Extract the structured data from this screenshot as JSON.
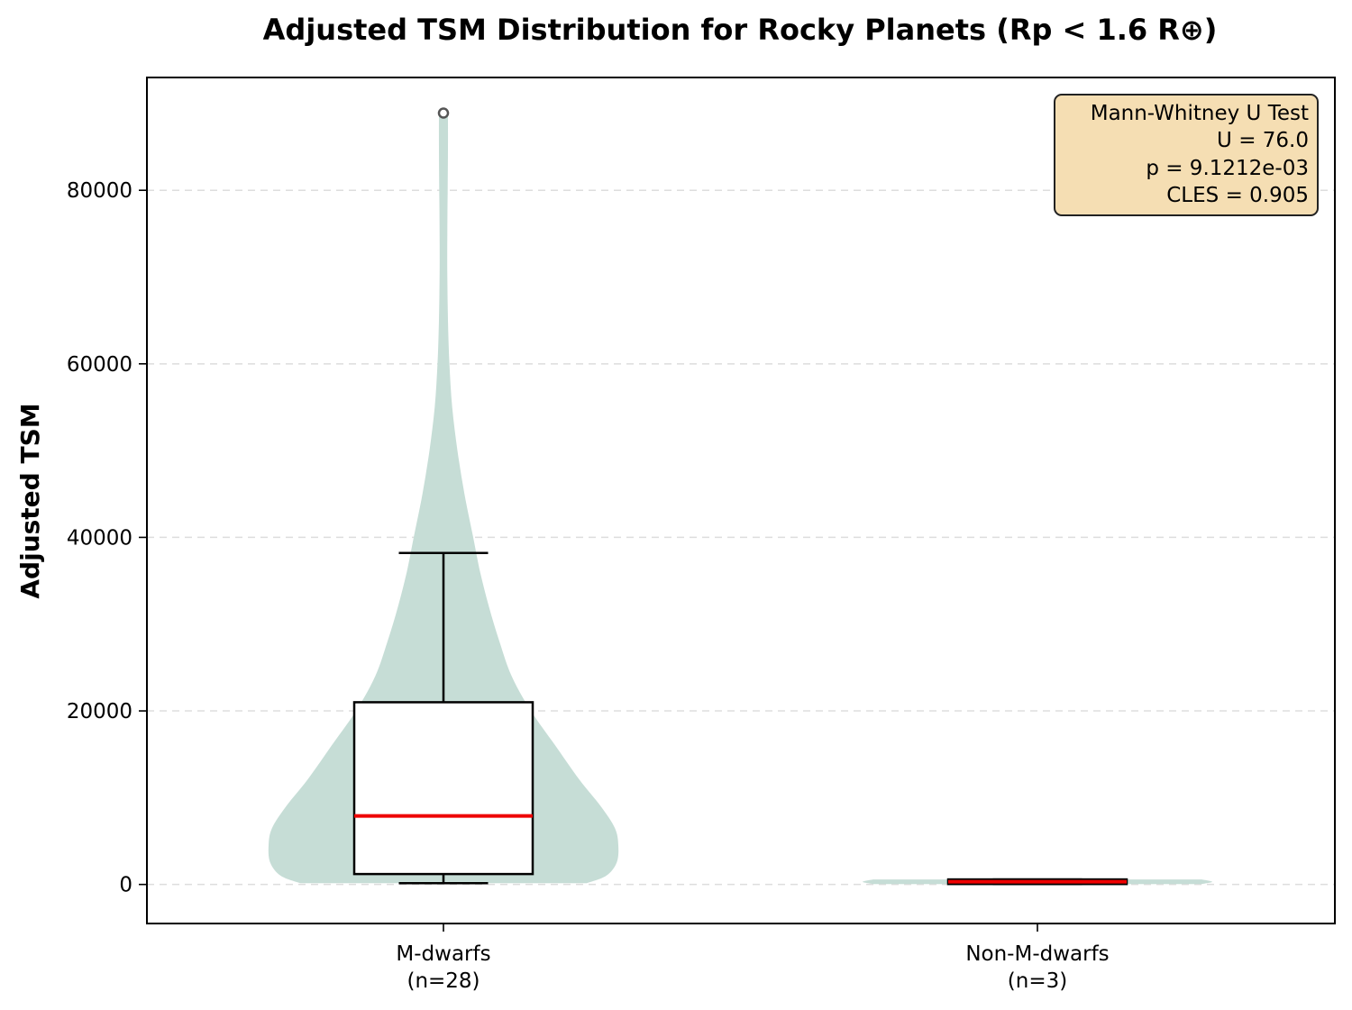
{
  "chart_data": {
    "type": "violin",
    "title": "Adjusted TSM Distribution for Rocky Planets (Rp < 1.6 R⊕)",
    "xlabel": "",
    "ylabel": "Adjusted TSM",
    "ylim": [
      -4500,
      93000
    ],
    "yticks": [
      0,
      20000,
      40000,
      60000,
      80000
    ],
    "grid": "y-dashed",
    "categories": [
      {
        "label": "M-dwarfs",
        "n_label": "(n=28)"
      },
      {
        "label": "Non-M-dwarfs",
        "n_label": "(n=3)"
      }
    ],
    "groups": [
      {
        "box": {
          "whisker_low": 150,
          "q1": 1200,
          "median": 7900,
          "q3": 21000,
          "whisker_high": 38200
        },
        "outliers": [
          88900
        ],
        "violin_profile": [
          [
            150,
            0.41
          ],
          [
            1000,
            0.465
          ],
          [
            2500,
            0.495
          ],
          [
            4500,
            0.5
          ],
          [
            6500,
            0.49
          ],
          [
            9000,
            0.45
          ],
          [
            12000,
            0.39
          ],
          [
            16000,
            0.32
          ],
          [
            20000,
            0.25
          ],
          [
            24000,
            0.195
          ],
          [
            28000,
            0.16
          ],
          [
            32000,
            0.13
          ],
          [
            36000,
            0.105
          ],
          [
            40000,
            0.085
          ],
          [
            45000,
            0.06
          ],
          [
            50000,
            0.04
          ],
          [
            55000,
            0.025
          ],
          [
            60000,
            0.017
          ],
          [
            65000,
            0.013
          ],
          [
            70000,
            0.011
          ],
          [
            75000,
            0.011
          ],
          [
            80000,
            0.012
          ],
          [
            85000,
            0.013
          ],
          [
            88500,
            0.013
          ]
        ]
      },
      {
        "box": {
          "whisker_low": 50,
          "q1": 50,
          "median": 320,
          "q3": 580,
          "whisker_high": 580
        },
        "outliers": [],
        "violin_profile": [
          [
            50,
            0.47
          ],
          [
            300,
            0.5
          ],
          [
            580,
            0.47
          ]
        ]
      }
    ],
    "stats_box": {
      "lines": [
        "Mann-Whitney U Test",
        "U = 76.0",
        "p = 9.1212e-03",
        "CLES = 0.905"
      ]
    },
    "colors": {
      "violin": "#c6ddd6",
      "box_fill": "#ffffff",
      "box_edge": "#000000",
      "median": "#ee0000",
      "grid": "#dddddd",
      "stats_bg": "#f5deb3",
      "outlier": "#555555"
    }
  }
}
